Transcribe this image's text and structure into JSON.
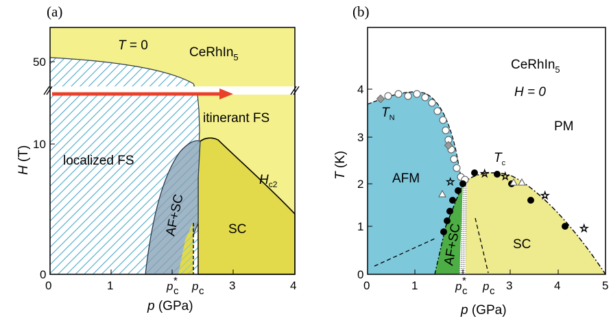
{
  "panel_a": {
    "panel_label": "(a)",
    "compound_prefix": "CeRhIn",
    "compound_sub": "5",
    "temp_prefix": "T",
    "temp_suffix": " = 0",
    "region_itinerant": "itinerant FS",
    "region_localized": "localized FS",
    "region_af_sc": "AF+SC",
    "region_sc": "SC",
    "hc2_main": "H",
    "hc2_sub": "c2",
    "x_title_var": "p",
    "x_title_unit": " (GPa)",
    "y_title_var": "H",
    "y_title_unit": " (T)",
    "x_ticks": [
      "0",
      "1",
      "3",
      "4"
    ],
    "x_special_ticks": {
      "pc_star_main": "p",
      "pc_star_sub": "c",
      "pc_star_sup": "*",
      "pc_main": "p",
      "pc_sub": "c"
    },
    "y_ticks": [
      "0",
      "10",
      "50"
    ],
    "colors": {
      "yellow_light": "#f4f08c",
      "yellow_dark": "#e2da4a",
      "hatch": "#4aa8c8",
      "arrow": "#e8402a",
      "grey_blue": "#9fb6c6"
    }
  },
  "panel_b": {
    "panel_label": "(b)",
    "compound_prefix": "CeRhIn",
    "compound_sub": "5",
    "field_label": "H = 0",
    "region_pm": "PM",
    "region_afm": "AFM",
    "region_sc": "SC",
    "region_af_sc": "AF+SC",
    "tn_main": "T",
    "tn_sub": "N",
    "tc_main": "T",
    "tc_sub": "c",
    "x_title_var": "p",
    "x_title_unit": " (GPa)",
    "y_title_var": "T",
    "y_title_unit": " (K)",
    "x_ticks": [
      "0",
      "1",
      "3",
      "4",
      "5"
    ],
    "x_special_ticks": {
      "pc_star_main": "p",
      "pc_star_sub": "c",
      "pc_star_sup": "*",
      "pc_main": "p",
      "pc_sub": "c"
    },
    "y_ticks": [
      "0",
      "1",
      "2",
      "3",
      "4"
    ],
    "colors": {
      "afm": "#7ec8dc",
      "sc": "#eeea8e",
      "afsc": "#4cae44",
      "pm": "#ffffff"
    }
  }
}
